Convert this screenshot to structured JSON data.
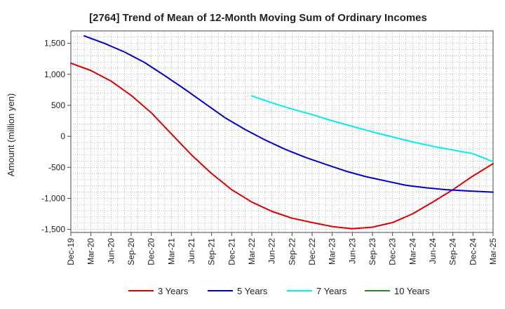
{
  "chart_data": {
    "type": "line",
    "title": "[2764]  Trend of Mean of 12-Month Moving Sum of Ordinary Incomes",
    "xlabel": "",
    "ylabel": "Amount (million yen)",
    "ylim": [
      -1550,
      1700
    ],
    "yticks": [
      1500,
      1000,
      500,
      0,
      -500,
      -1000,
      -1500
    ],
    "ytick_labels": [
      "1,500",
      "1,000",
      "500",
      "0",
      "-500",
      "-1,000",
      "-1,500"
    ],
    "xlim": [
      0,
      63
    ],
    "x_tick_labels": [
      "Dec-19",
      "Mar-20",
      "Jun-20",
      "Sep-20",
      "Dec-20",
      "Mar-21",
      "Jun-21",
      "Sep-21",
      "Dec-21",
      "Mar-22",
      "Jun-22",
      "Sep-22",
      "Dec-22",
      "Mar-23",
      "Jun-23",
      "Sep-23",
      "Dec-23",
      "Mar-24",
      "Jun-24",
      "Sep-24",
      "Dec-24",
      "Mar-25"
    ],
    "grid": true,
    "legend_position": "bottom",
    "series": [
      {
        "name": "3 Years",
        "color": "#dd0000",
        "points": [
          [
            0,
            1180
          ],
          [
            3,
            1060
          ],
          [
            6,
            890
          ],
          [
            9,
            660
          ],
          [
            12,
            380
          ],
          [
            15,
            40
          ],
          [
            18,
            -300
          ],
          [
            21,
            -600
          ],
          [
            24,
            -860
          ],
          [
            27,
            -1060
          ],
          [
            30,
            -1210
          ],
          [
            33,
            -1320
          ],
          [
            36,
            -1390
          ],
          [
            39,
            -1455
          ],
          [
            42,
            -1490
          ],
          [
            45,
            -1465
          ],
          [
            48,
            -1390
          ],
          [
            51,
            -1250
          ],
          [
            54,
            -1060
          ],
          [
            57,
            -860
          ],
          [
            60,
            -640
          ],
          [
            63,
            -440
          ]
        ]
      },
      {
        "name": "5 Years",
        "color": "#0000cc",
        "points": [
          [
            2,
            1620
          ],
          [
            5,
            1500
          ],
          [
            8,
            1360
          ],
          [
            11,
            1190
          ],
          [
            14,
            980
          ],
          [
            17,
            760
          ],
          [
            20,
            530
          ],
          [
            23,
            300
          ],
          [
            26,
            110
          ],
          [
            29,
            -60
          ],
          [
            32,
            -210
          ],
          [
            35,
            -340
          ],
          [
            38,
            -450
          ],
          [
            41,
            -560
          ],
          [
            44,
            -650
          ],
          [
            47,
            -720
          ],
          [
            50,
            -790
          ],
          [
            53,
            -830
          ],
          [
            56,
            -860
          ],
          [
            59,
            -880
          ],
          [
            63,
            -900
          ]
        ]
      },
      {
        "name": "7 Years",
        "color": "#00eeee",
        "points": [
          [
            27,
            650
          ],
          [
            30,
            540
          ],
          [
            33,
            440
          ],
          [
            36,
            350
          ],
          [
            39,
            250
          ],
          [
            42,
            160
          ],
          [
            45,
            70
          ],
          [
            48,
            -10
          ],
          [
            51,
            -90
          ],
          [
            54,
            -160
          ],
          [
            57,
            -220
          ],
          [
            60,
            -280
          ],
          [
            63,
            -410
          ]
        ]
      },
      {
        "name": "10 Years",
        "color": "#228b22",
        "points": []
      }
    ]
  }
}
